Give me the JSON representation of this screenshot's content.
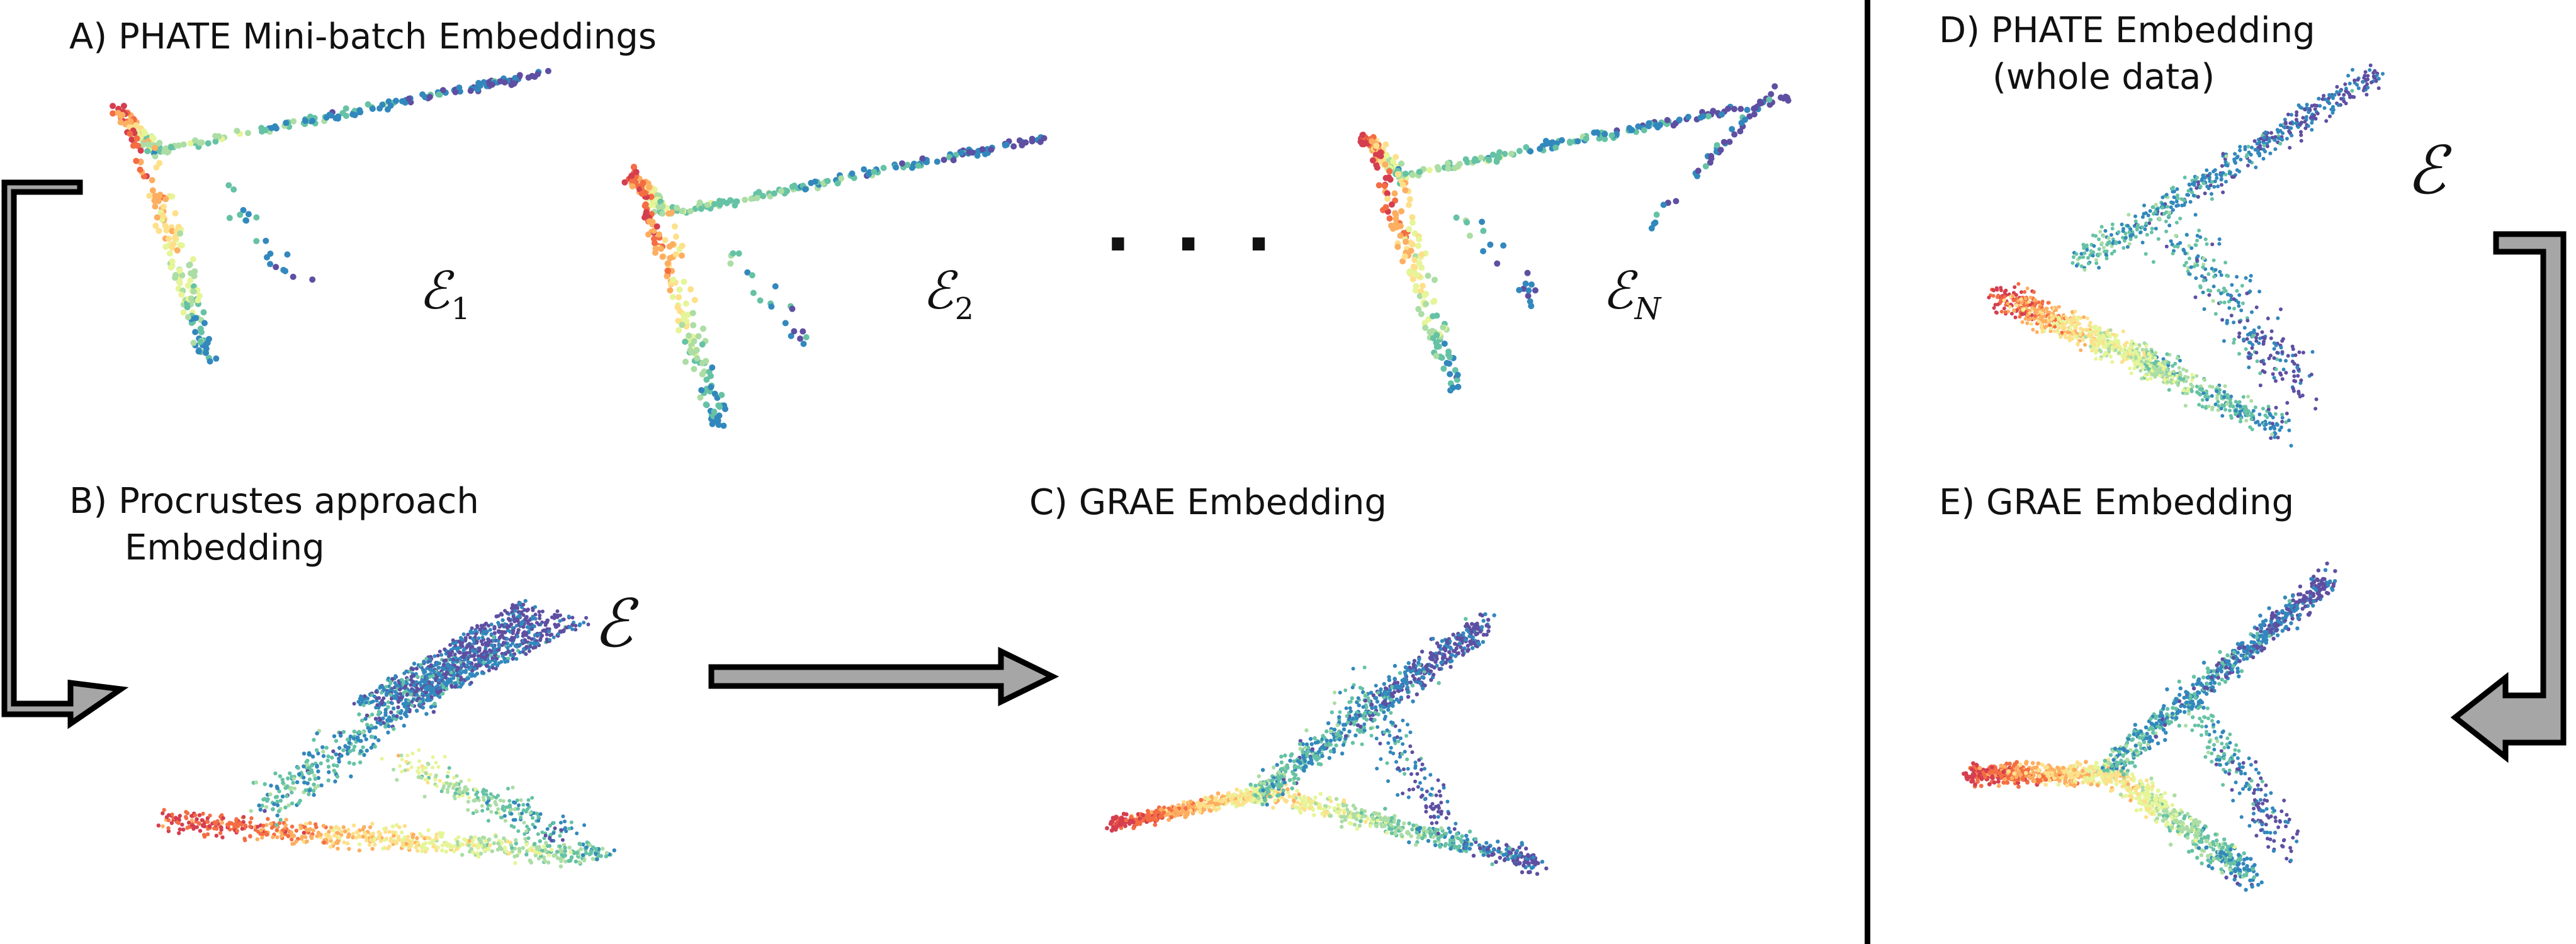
{
  "panels": {
    "a": {
      "label": "A) PHATE Mini-batch Embeddings"
    },
    "b": {
      "label_line1": "B) Procrustes approach",
      "label_line2": "Embedding"
    },
    "c": {
      "label": "C) GRAE Embedding"
    },
    "d": {
      "label_line1": "D) PHATE Embedding",
      "label_line2": "(whole data)"
    },
    "e": {
      "label": "E) GRAE Embedding"
    }
  },
  "math": {
    "e_symbol": "ℰ",
    "sub_1": "1",
    "sub_2": "2",
    "sub_n": "N",
    "ellipsis": "..."
  },
  "colors": {
    "spectral": [
      "#d53e4f",
      "#f46d43",
      "#fdae61",
      "#fee08b",
      "#e6f598",
      "#abdda4",
      "#66c2a5",
      "#3288bd",
      "#5e4fa2"
    ],
    "arrow_fill": "#a6a6a6",
    "arrow_stroke": "#000000"
  }
}
